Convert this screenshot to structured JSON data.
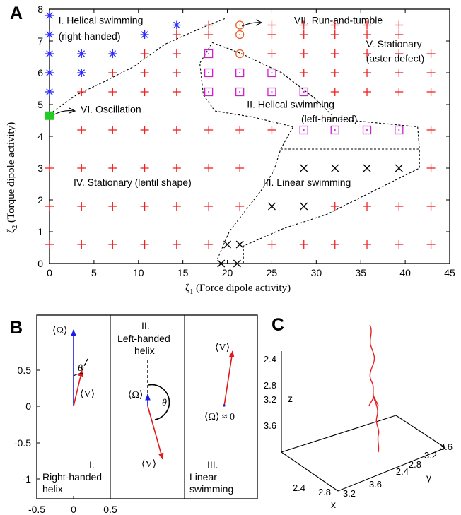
{
  "panel_labels": {
    "a": "A",
    "b": "B",
    "c": "C"
  },
  "chart_data": [
    {
      "panel": "A",
      "type": "scatter",
      "xlabel": "ζ1 (Force dipole activity)",
      "xlabel_main": "ζ",
      "xlabel_sub": "1",
      "xlabel_rest": " (Force dipole activity)",
      "ylabel": "ζ2 (Torque dipole activity)",
      "ylabel_main": "ζ",
      "ylabel_sub": "2",
      "ylabel_rest": " (Torque dipole activity)",
      "xlim": [
        0,
        45
      ],
      "ylim": [
        0,
        8
      ],
      "xticks": [
        0,
        5,
        10,
        15,
        20,
        25,
        30,
        35,
        40,
        45
      ],
      "yticks": [
        0,
        1,
        2,
        3,
        4,
        5,
        6,
        7,
        8
      ],
      "series": [
        {
          "marker": "asterisk",
          "color": "#2a2aff",
          "points": [
            [
              0,
              7.8
            ],
            [
              0,
              7.2
            ],
            [
              0,
              6.6
            ],
            [
              3.6,
              6.6
            ],
            [
              7.1,
              6.6
            ],
            [
              0,
              6.0
            ],
            [
              3.6,
              6.0
            ],
            [
              0,
              5.4
            ],
            [
              10.7,
              7.2
            ],
            [
              14.3,
              7.5
            ]
          ]
        },
        {
          "marker": "filled-square",
          "color": "#22cc22",
          "points": [
            [
              0,
              4.65
            ]
          ]
        },
        {
          "marker": "circle-dot",
          "color": "#e8602a",
          "points": [
            [
              21.4,
              7.5
            ],
            [
              21.4,
              7.2
            ],
            [
              21.4,
              6.6
            ]
          ]
        },
        {
          "marker": "square-dot",
          "color": "#cc22cc",
          "points": [
            [
              17.9,
              6.6
            ],
            [
              17.9,
              6.0
            ],
            [
              21.4,
              6.0
            ],
            [
              25.0,
              6.0
            ],
            [
              17.9,
              5.4
            ],
            [
              21.4,
              5.4
            ],
            [
              25.0,
              5.4
            ],
            [
              28.6,
              5.4
            ],
            [
              28.6,
              4.2
            ],
            [
              32.1,
              4.2
            ],
            [
              35.7,
              4.2
            ],
            [
              39.3,
              4.2
            ]
          ]
        },
        {
          "marker": "cross",
          "color": "#000000",
          "points": [
            [
              28.6,
              3.0
            ],
            [
              32.1,
              3.0
            ],
            [
              35.7,
              3.0
            ],
            [
              39.3,
              3.0
            ],
            [
              25.0,
              1.8
            ],
            [
              28.6,
              1.8
            ],
            [
              20.0,
              0.6
            ],
            [
              21.4,
              0.6
            ],
            [
              19.3,
              0.0
            ],
            [
              21.1,
              0.0
            ]
          ]
        },
        {
          "marker": "plus",
          "color": "#ee2222",
          "points": [
            [
              17.9,
              7.5
            ],
            [
              25.0,
              7.5
            ],
            [
              28.6,
              7.5
            ],
            [
              32.1,
              7.5
            ],
            [
              35.7,
              7.5
            ],
            [
              39.3,
              7.5
            ],
            [
              14.3,
              7.2
            ],
            [
              17.9,
              7.2
            ],
            [
              25.0,
              7.2
            ],
            [
              28.6,
              7.2
            ],
            [
              32.1,
              7.2
            ],
            [
              35.7,
              7.2
            ],
            [
              39.3,
              7.2
            ],
            [
              10.7,
              6.6
            ],
            [
              14.3,
              6.6
            ],
            [
              25.0,
              6.6
            ],
            [
              28.6,
              6.6
            ],
            [
              32.1,
              6.6
            ],
            [
              35.7,
              6.6
            ],
            [
              39.3,
              6.6
            ],
            [
              42.9,
              6.6
            ],
            [
              7.1,
              6.0
            ],
            [
              10.7,
              6.0
            ],
            [
              14.3,
              6.0
            ],
            [
              28.6,
              6.0
            ],
            [
              32.1,
              6.0
            ],
            [
              35.7,
              6.0
            ],
            [
              39.3,
              6.0
            ],
            [
              42.9,
              6.0
            ],
            [
              3.6,
              5.4
            ],
            [
              7.1,
              5.4
            ],
            [
              10.7,
              5.4
            ],
            [
              14.3,
              5.4
            ],
            [
              32.1,
              5.4
            ],
            [
              35.7,
              5.4
            ],
            [
              39.3,
              5.4
            ],
            [
              42.9,
              5.4
            ],
            [
              3.6,
              4.2
            ],
            [
              7.1,
              4.2
            ],
            [
              10.7,
              4.2
            ],
            [
              14.3,
              4.2
            ],
            [
              17.9,
              4.2
            ],
            [
              21.4,
              4.2
            ],
            [
              25.0,
              4.2
            ],
            [
              42.9,
              4.2
            ],
            [
              0,
              3.0
            ],
            [
              3.6,
              3.0
            ],
            [
              7.1,
              3.0
            ],
            [
              10.7,
              3.0
            ],
            [
              14.3,
              3.0
            ],
            [
              17.9,
              3.0
            ],
            [
              21.4,
              3.0
            ],
            [
              42.9,
              3.0
            ],
            [
              0,
              1.8
            ],
            [
              3.6,
              1.8
            ],
            [
              7.1,
              1.8
            ],
            [
              10.7,
              1.8
            ],
            [
              14.3,
              1.8
            ],
            [
              17.9,
              1.8
            ],
            [
              21.4,
              1.8
            ],
            [
              32.1,
              1.8
            ],
            [
              35.7,
              1.8
            ],
            [
              39.3,
              1.8
            ],
            [
              42.9,
              1.8
            ],
            [
              0,
              0.6
            ],
            [
              3.6,
              0.6
            ],
            [
              7.1,
              0.6
            ],
            [
              10.7,
              0.6
            ],
            [
              14.3,
              0.6
            ],
            [
              17.9,
              0.6
            ],
            [
              25.0,
              0.6
            ],
            [
              28.6,
              0.6
            ],
            [
              32.1,
              0.6
            ],
            [
              35.7,
              0.6
            ],
            [
              39.3,
              0.6
            ],
            [
              42.9,
              0.6
            ]
          ]
        }
      ],
      "boundaries": [
        {
          "name": "helical-right-boundary",
          "points": [
            [
              0,
              4.7
            ],
            [
              1.5,
              5.0
            ],
            [
              3,
              5.3
            ],
            [
              6,
              5.7
            ],
            [
              9.5,
              6.2
            ],
            [
              13,
              6.9
            ],
            [
              17,
              7.4
            ],
            [
              19.7,
              7.7
            ]
          ]
        },
        {
          "name": "helical-left-boundary",
          "points": [
            [
              27.4,
              4.3
            ],
            [
              23,
              4.6
            ],
            [
              18.6,
              4.8
            ],
            [
              17.3,
              5.3
            ],
            [
              16.9,
              6.3
            ],
            [
              18.3,
              6.95
            ],
            [
              21.6,
              6.6
            ],
            [
              26.1,
              6.0
            ],
            [
              29.8,
              5.2
            ],
            [
              32.2,
              4.55
            ],
            [
              41.4,
              4.3
            ],
            [
              41.6,
              3.6
            ],
            [
              41.6,
              3.0
            ],
            [
              31.2,
              1.55
            ],
            [
              26.3,
              1.1
            ],
            [
              21.8,
              0.55
            ],
            [
              21.8,
              0.0
            ]
          ],
          "closed": false
        },
        {
          "name": "linear-boundary",
          "points": [
            [
              27.4,
              4.3
            ],
            [
              26.0,
              3.6
            ],
            [
              25.2,
              2.9
            ],
            [
              23.8,
              2.3
            ],
            [
              20.2,
              1.0
            ],
            [
              18.9,
              0.15
            ]
          ]
        },
        {
          "name": "linear-top-boundary",
          "points": [
            [
              26.0,
              3.6
            ],
            [
              41.6,
              3.6
            ]
          ]
        }
      ],
      "region_labels": [
        {
          "text": "I. Helical swimming",
          "x": 1.0,
          "y": 7.55
        },
        {
          "text": "(right-handed)",
          "x": 1.0,
          "y": 7.05
        },
        {
          "text": "VI. Oscillation",
          "x": 3.5,
          "y": 4.75
        },
        {
          "text": "VII. Run-and-tumble",
          "x": 27.5,
          "y": 7.55
        },
        {
          "text": "V. Stationary",
          "x": 35.6,
          "y": 6.8
        },
        {
          "text": "(aster defect)",
          "x": 35.6,
          "y": 6.35
        },
        {
          "text": "II. Helical swimming",
          "x": 22.2,
          "y": 4.9
        },
        {
          "text": "(left-handed)",
          "x": 28.3,
          "y": 4.45
        },
        {
          "text": "III. Linear  swimming",
          "x": 24.0,
          "y": 2.45
        },
        {
          "text": "IV. Stationary (lentil shape)",
          "x": 2.7,
          "y": 2.45
        }
      ]
    },
    {
      "panel": "B",
      "type": "line",
      "xlim": [
        -0.5,
        0.5
      ],
      "ylim": [
        -1.2,
        0.95
      ],
      "xticks": [
        "-0.5",
        "0",
        "0.5"
      ],
      "yticks": [
        "-1",
        "-0.5",
        "0",
        "0.5"
      ],
      "subpanels": [
        {
          "labels": [
            "I.",
            "Right-handed",
            "helix"
          ],
          "omega_label": "⟨Ω⟩",
          "v_label": "⟨V⟩",
          "angle_label": "θ",
          "omega_vec": [
            0.0,
            0.88
          ],
          "v_vec": [
            0.1,
            0.42
          ]
        },
        {
          "labels": [
            "II.",
            "Left-handed",
            "helix"
          ],
          "omega_label": "⟨Ω⟩",
          "v_label": "⟨V⟩",
          "angle_label": "θ",
          "omega_vec": [
            0.0,
            0.07
          ],
          "v_vec": [
            0.2,
            -0.68
          ]
        },
        {
          "labels": [
            "III.",
            "Linear",
            "swimming"
          ],
          "omega_label": "⟨Ω⟩ ≈ 0",
          "v_label": "⟨V⟩",
          "v_vec": [
            0.08,
            0.5
          ]
        }
      ]
    },
    {
      "panel": "C",
      "type": "line",
      "xlabel": "x",
      "ylabel": "y",
      "zlabel": "z",
      "xticks": [
        "2.4",
        "2.8",
        "3.2",
        "3.6"
      ],
      "yticks": [
        "2.4",
        "2.8",
        "3.2",
        "3.6"
      ],
      "zticks": [
        "2.4",
        "2.8",
        "3.2",
        "3.6"
      ],
      "trajectory_color": "#e82020"
    }
  ]
}
